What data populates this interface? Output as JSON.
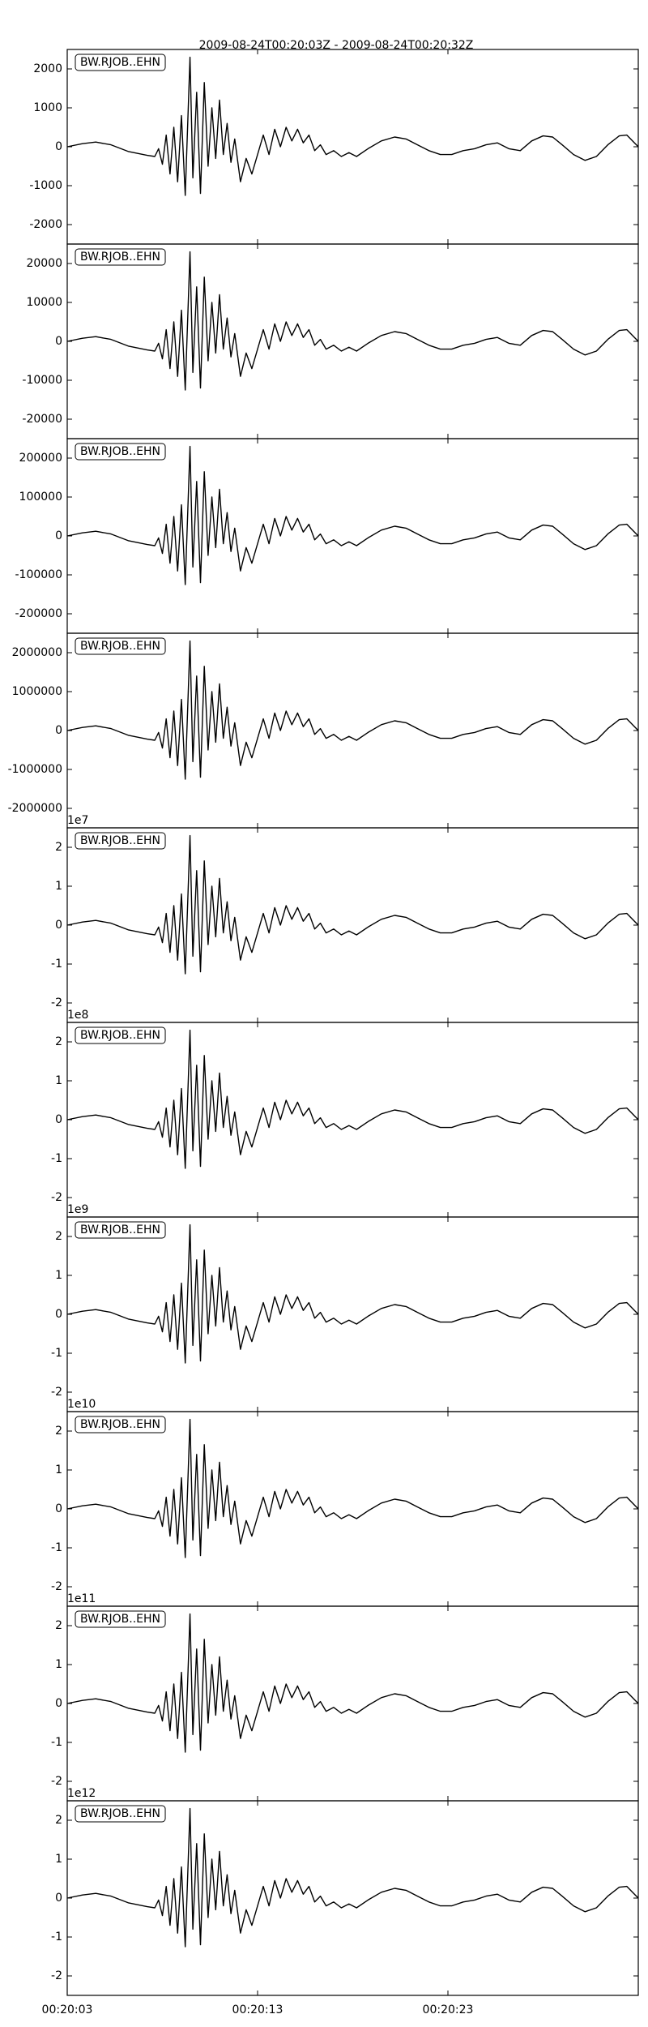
{
  "chart_data": {
    "type": "line",
    "title": "2009-08-24T00:20:03Z - 2009-08-24T00:20:32Z",
    "xlim": [
      0,
      30
    ],
    "xticks": [
      {
        "value": 0,
        "label": "00:20:03"
      },
      {
        "value": 10,
        "label": "00:20:13"
      },
      {
        "value": 20,
        "label": "00:20:23"
      }
    ],
    "x": [
      0,
      0.8,
      1.5,
      2.3,
      3.2,
      4.2,
      4.6,
      4.8,
      5.0,
      5.2,
      5.4,
      5.6,
      5.8,
      6.0,
      6.2,
      6.45,
      6.6,
      6.8,
      7.0,
      7.2,
      7.4,
      7.6,
      7.8,
      8.0,
      8.2,
      8.4,
      8.6,
      8.8,
      9.1,
      9.4,
      9.7,
      10.0,
      10.3,
      10.6,
      10.9,
      11.2,
      11.5,
      11.8,
      12.1,
      12.4,
      12.7,
      13.0,
      13.3,
      13.6,
      14.0,
      14.4,
      14.8,
      15.2,
      15.8,
      16.5,
      17.2,
      17.8,
      18.4,
      19.0,
      19.6,
      20.2,
      20.8,
      21.4,
      22.0,
      22.6,
      23.2,
      23.8,
      24.4,
      25.0,
      25.5,
      26.0,
      26.6,
      27.2,
      27.8,
      28.4,
      29.0,
      29.4,
      29.8,
      30.0
    ],
    "color": "#000000",
    "panels": [
      {
        "label": "BW.RJOB..EHN",
        "ylim": [
          -2500,
          2500
        ],
        "yticks": [
          -2000,
          -1000,
          0,
          1000,
          2000
        ],
        "values": [
          0,
          80,
          120,
          50,
          -120,
          -220,
          -250,
          -50,
          -450,
          300,
          -700,
          500,
          -900,
          800,
          -1250,
          2300,
          -800,
          1400,
          -1200,
          1650,
          -500,
          1000,
          -300,
          1200,
          -200,
          600,
          -400,
          200,
          -900,
          -300,
          -700,
          -200,
          300,
          -200,
          450,
          0,
          500,
          150,
          450,
          100,
          300,
          -100,
          50,
          -200,
          -100,
          -250,
          -150,
          -250,
          -50,
          150,
          250,
          200,
          50,
          -100,
          -200,
          -200,
          -100,
          -50,
          50,
          100,
          -50,
          -100,
          150,
          280,
          250,
          50,
          -200,
          -350,
          -250,
          50,
          280,
          300,
          100,
          0
        ]
      },
      {
        "label": "BW.RJOB..EHN",
        "ylim": [
          -25000,
          25000
        ],
        "yticks": [
          -20000,
          -10000,
          0,
          10000,
          20000
        ],
        "values": [
          0,
          800,
          1200,
          500,
          -1200,
          -2200,
          -2500,
          -500,
          -4500,
          3000,
          -7000,
          5000,
          -9000,
          8000,
          -12500,
          23000,
          -8000,
          14000,
          -12000,
          16500,
          -5000,
          10000,
          -3000,
          12000,
          -2000,
          6000,
          -4000,
          2000,
          -9000,
          -3000,
          -7000,
          -2000,
          3000,
          -2000,
          4500,
          0,
          5000,
          1500,
          4500,
          1000,
          3000,
          -1000,
          500,
          -2000,
          -1000,
          -2500,
          -1500,
          -2500,
          -500,
          1500,
          2500,
          2000,
          500,
          -1000,
          -2000,
          -2000,
          -1000,
          -500,
          500,
          1000,
          -500,
          -1000,
          1500,
          2800,
          2500,
          500,
          -2000,
          -3500,
          -2500,
          500,
          2800,
          3000,
          1000,
          0
        ]
      },
      {
        "label": "BW.RJOB..EHN",
        "ylim": [
          -250000,
          250000
        ],
        "yticks": [
          -200000,
          -100000,
          0,
          100000,
          200000
        ],
        "values": [
          0,
          8000,
          12000,
          5000,
          -12000,
          -22000,
          -25000,
          -5000,
          -45000,
          30000,
          -70000,
          50000,
          -90000,
          80000,
          -125000,
          230000,
          -80000,
          140000,
          -120000,
          165000,
          -50000,
          100000,
          -30000,
          120000,
          -20000,
          60000,
          -40000,
          20000,
          -90000,
          -30000,
          -70000,
          -20000,
          30000,
          -20000,
          45000,
          0,
          50000,
          15000,
          45000,
          10000,
          30000,
          -10000,
          5000,
          -20000,
          -10000,
          -25000,
          -15000,
          -25000,
          -5000,
          15000,
          25000,
          20000,
          5000,
          -10000,
          -20000,
          -20000,
          -10000,
          -5000,
          5000,
          10000,
          -5000,
          -10000,
          15000,
          28000,
          25000,
          5000,
          -20000,
          -35000,
          -25000,
          5000,
          28000,
          30000,
          10000,
          0
        ]
      },
      {
        "label": "BW.RJOB..EHN",
        "ylim": [
          -2500000,
          2500000
        ],
        "yticks": [
          -2000000,
          -1000000,
          0,
          1000000,
          2000000
        ],
        "values": [
          0,
          80000,
          120000,
          50000,
          -120000,
          -220000,
          -250000,
          -50000,
          -450000,
          300000,
          -700000,
          500000,
          -900000,
          800000,
          -1250000,
          2300000,
          -800000,
          1400000,
          -1200000,
          1650000,
          -500000,
          1000000,
          -300000,
          1200000,
          -200000,
          600000,
          -400000,
          200000,
          -900000,
          -300000,
          -700000,
          -200000,
          300000,
          -200000,
          450000,
          0,
          500000,
          150000,
          450000,
          100000,
          300000,
          -100000,
          50000,
          -200000,
          -100000,
          -250000,
          -150000,
          -250000,
          -50000,
          150000,
          250000,
          200000,
          50000,
          -100000,
          -200000,
          -200000,
          -100000,
          -50000,
          50000,
          100000,
          -50000,
          -100000,
          150000,
          280000,
          250000,
          50000,
          -200000,
          -350000,
          -250000,
          50000,
          280000,
          300000,
          100000,
          0
        ]
      },
      {
        "label": "BW.RJOB..EHN",
        "offset": "1e7",
        "ylim": [
          -2.5,
          2.5
        ],
        "yticks": [
          -2,
          -1,
          0,
          1,
          2
        ],
        "values": [
          0,
          0.08,
          0.12,
          0.05,
          -0.12,
          -0.22,
          -0.25,
          -0.05,
          -0.45,
          0.3,
          -0.7,
          0.5,
          -0.9,
          0.8,
          -1.25,
          2.3,
          -0.8,
          1.4,
          -1.2,
          1.65,
          -0.5,
          1,
          -0.3,
          1.2,
          -0.2,
          0.6,
          -0.4,
          0.2,
          -0.9,
          -0.3,
          -0.7,
          -0.2,
          0.3,
          -0.2,
          0.45,
          0,
          0.5,
          0.15,
          0.45,
          0.1,
          0.3,
          -0.1,
          0.05,
          -0.2,
          -0.1,
          -0.25,
          -0.15,
          -0.25,
          -0.05,
          0.15,
          0.25,
          0.2,
          0.05,
          -0.1,
          -0.2,
          -0.2,
          -0.1,
          -0.05,
          0.05,
          0.1,
          -0.05,
          -0.1,
          0.15,
          0.28,
          0.25,
          0.05,
          -0.2,
          -0.35,
          -0.25,
          0.05,
          0.28,
          0.3,
          0.1,
          0
        ]
      },
      {
        "label": "BW.RJOB..EHN",
        "offset": "1e8",
        "ylim": [
          -2.5,
          2.5
        ],
        "yticks": [
          -2,
          -1,
          0,
          1,
          2
        ],
        "values": [
          0,
          0.08,
          0.12,
          0.05,
          -0.12,
          -0.22,
          -0.25,
          -0.05,
          -0.45,
          0.3,
          -0.7,
          0.5,
          -0.9,
          0.8,
          -1.25,
          2.3,
          -0.8,
          1.4,
          -1.2,
          1.65,
          -0.5,
          1,
          -0.3,
          1.2,
          -0.2,
          0.6,
          -0.4,
          0.2,
          -0.9,
          -0.3,
          -0.7,
          -0.2,
          0.3,
          -0.2,
          0.45,
          0,
          0.5,
          0.15,
          0.45,
          0.1,
          0.3,
          -0.1,
          0.05,
          -0.2,
          -0.1,
          -0.25,
          -0.15,
          -0.25,
          -0.05,
          0.15,
          0.25,
          0.2,
          0.05,
          -0.1,
          -0.2,
          -0.2,
          -0.1,
          -0.05,
          0.05,
          0.1,
          -0.05,
          -0.1,
          0.15,
          0.28,
          0.25,
          0.05,
          -0.2,
          -0.35,
          -0.25,
          0.05,
          0.28,
          0.3,
          0.1,
          0
        ]
      },
      {
        "label": "BW.RJOB..EHN",
        "offset": "1e9",
        "ylim": [
          -2.5,
          2.5
        ],
        "yticks": [
          -2,
          -1,
          0,
          1,
          2
        ],
        "values": [
          0,
          0.08,
          0.12,
          0.05,
          -0.12,
          -0.22,
          -0.25,
          -0.05,
          -0.45,
          0.3,
          -0.7,
          0.5,
          -0.9,
          0.8,
          -1.25,
          2.3,
          -0.8,
          1.4,
          -1.2,
          1.65,
          -0.5,
          1,
          -0.3,
          1.2,
          -0.2,
          0.6,
          -0.4,
          0.2,
          -0.9,
          -0.3,
          -0.7,
          -0.2,
          0.3,
          -0.2,
          0.45,
          0,
          0.5,
          0.15,
          0.45,
          0.1,
          0.3,
          -0.1,
          0.05,
          -0.2,
          -0.1,
          -0.25,
          -0.15,
          -0.25,
          -0.05,
          0.15,
          0.25,
          0.2,
          0.05,
          -0.1,
          -0.2,
          -0.2,
          -0.1,
          -0.05,
          0.05,
          0.1,
          -0.05,
          -0.1,
          0.15,
          0.28,
          0.25,
          0.05,
          -0.2,
          -0.35,
          -0.25,
          0.05,
          0.28,
          0.3,
          0.1,
          0
        ]
      },
      {
        "label": "BW.RJOB..EHN",
        "offset": "1e10",
        "ylim": [
          -2.5,
          2.5
        ],
        "yticks": [
          -2,
          -1,
          0,
          1,
          2
        ],
        "values": [
          0,
          0.08,
          0.12,
          0.05,
          -0.12,
          -0.22,
          -0.25,
          -0.05,
          -0.45,
          0.3,
          -0.7,
          0.5,
          -0.9,
          0.8,
          -1.25,
          2.3,
          -0.8,
          1.4,
          -1.2,
          1.65,
          -0.5,
          1,
          -0.3,
          1.2,
          -0.2,
          0.6,
          -0.4,
          0.2,
          -0.9,
          -0.3,
          -0.7,
          -0.2,
          0.3,
          -0.2,
          0.45,
          0,
          0.5,
          0.15,
          0.45,
          0.1,
          0.3,
          -0.1,
          0.05,
          -0.2,
          -0.1,
          -0.25,
          -0.15,
          -0.25,
          -0.05,
          0.15,
          0.25,
          0.2,
          0.05,
          -0.1,
          -0.2,
          -0.2,
          -0.1,
          -0.05,
          0.05,
          0.1,
          -0.05,
          -0.1,
          0.15,
          0.28,
          0.25,
          0.05,
          -0.2,
          -0.35,
          -0.25,
          0.05,
          0.28,
          0.3,
          0.1,
          0
        ]
      },
      {
        "label": "BW.RJOB..EHN",
        "offset": "1e11",
        "ylim": [
          -2.5,
          2.5
        ],
        "yticks": [
          -2,
          -1,
          0,
          1,
          2
        ],
        "values": [
          0,
          0.08,
          0.12,
          0.05,
          -0.12,
          -0.22,
          -0.25,
          -0.05,
          -0.45,
          0.3,
          -0.7,
          0.5,
          -0.9,
          0.8,
          -1.25,
          2.3,
          -0.8,
          1.4,
          -1.2,
          1.65,
          -0.5,
          1,
          -0.3,
          1.2,
          -0.2,
          0.6,
          -0.4,
          0.2,
          -0.9,
          -0.3,
          -0.7,
          -0.2,
          0.3,
          -0.2,
          0.45,
          0,
          0.5,
          0.15,
          0.45,
          0.1,
          0.3,
          -0.1,
          0.05,
          -0.2,
          -0.1,
          -0.25,
          -0.15,
          -0.25,
          -0.05,
          0.15,
          0.25,
          0.2,
          0.05,
          -0.1,
          -0.2,
          -0.2,
          -0.1,
          -0.05,
          0.05,
          0.1,
          -0.05,
          -0.1,
          0.15,
          0.28,
          0.25,
          0.05,
          -0.2,
          -0.35,
          -0.25,
          0.05,
          0.28,
          0.3,
          0.1,
          0
        ]
      },
      {
        "label": "BW.RJOB..EHN",
        "offset": "1e12",
        "ylim": [
          -2.5,
          2.5
        ],
        "yticks": [
          -2,
          -1,
          0,
          1,
          2
        ],
        "values": [
          0,
          0.08,
          0.12,
          0.05,
          -0.12,
          -0.22,
          -0.25,
          -0.05,
          -0.45,
          0.3,
          -0.7,
          0.5,
          -0.9,
          0.8,
          -1.25,
          2.3,
          -0.8,
          1.4,
          -1.2,
          1.65,
          -0.5,
          1,
          -0.3,
          1.2,
          -0.2,
          0.6,
          -0.4,
          0.2,
          -0.9,
          -0.3,
          -0.7,
          -0.2,
          0.3,
          -0.2,
          0.45,
          0,
          0.5,
          0.15,
          0.45,
          0.1,
          0.3,
          -0.1,
          0.05,
          -0.2,
          -0.1,
          -0.25,
          -0.15,
          -0.25,
          -0.05,
          0.15,
          0.25,
          0.2,
          0.05,
          -0.1,
          -0.2,
          -0.2,
          -0.1,
          -0.05,
          0.05,
          0.1,
          -0.05,
          -0.1,
          0.15,
          0.28,
          0.25,
          0.05,
          -0.2,
          -0.35,
          -0.25,
          0.05,
          0.28,
          0.3,
          0.1,
          0
        ]
      }
    ]
  }
}
